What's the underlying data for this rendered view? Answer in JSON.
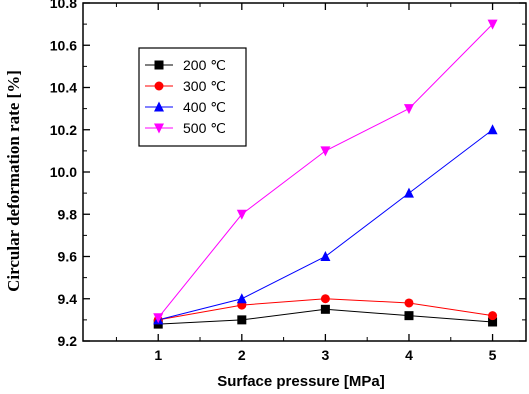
{
  "chart_data": {
    "type": "line",
    "title": "",
    "xlabel": "Surface pressure [MPa]",
    "ylabel": "Circular deformation rate [%]",
    "x": [
      1,
      2,
      3,
      4,
      5
    ],
    "xlim": [
      0.1,
      5.4
    ],
    "ylim": [
      9.2,
      10.8
    ],
    "xticks": [
      "1",
      "2",
      "3",
      "4",
      "5"
    ],
    "yticks": [
      "9.2",
      "9.4",
      "9.6",
      "9.8",
      "10.0",
      "10.2",
      "10.4",
      "10.6",
      "10.8"
    ],
    "grid": false,
    "legend_position": "top-left",
    "series": [
      {
        "name": "200 ℃",
        "values": [
          9.28,
          9.3,
          9.35,
          9.32,
          9.29
        ],
        "color": "#000000",
        "marker": "square"
      },
      {
        "name": "300 ℃",
        "values": [
          9.3,
          9.37,
          9.4,
          9.38,
          9.32
        ],
        "color": "#ff0000",
        "marker": "circle"
      },
      {
        "name": "400 ℃",
        "values": [
          9.3,
          9.4,
          9.6,
          9.9,
          10.2
        ],
        "color": "#0000ff",
        "marker": "triangle-up"
      },
      {
        "name": "500 ℃",
        "values": [
          9.31,
          9.8,
          10.1,
          10.3,
          10.7
        ],
        "color": "#ff00ff",
        "marker": "triangle-down"
      }
    ]
  }
}
